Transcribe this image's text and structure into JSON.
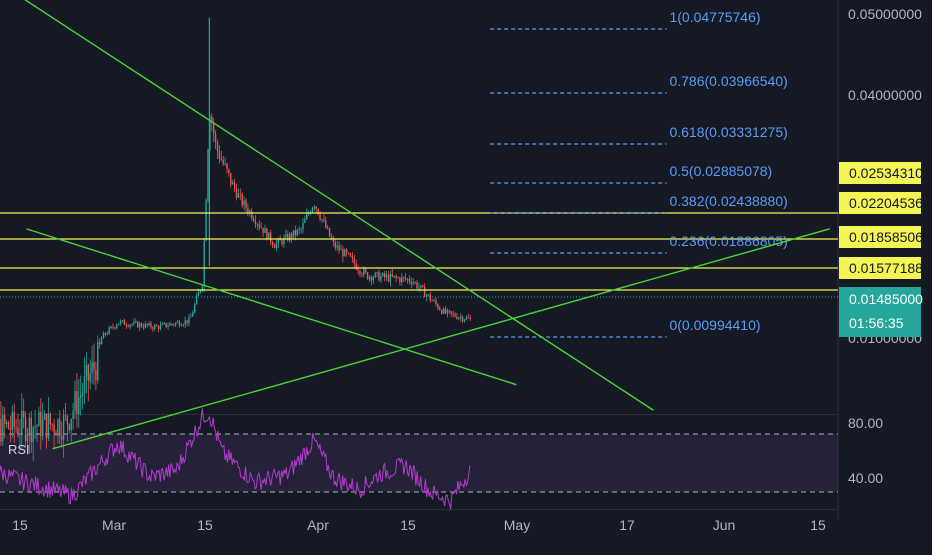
{
  "chart_data": {
    "type": "candlestick",
    "title": "",
    "x_tick_labels": [
      "15",
      "Mar",
      "15",
      "Apr",
      "15",
      "May",
      "17",
      "Jun",
      "15"
    ],
    "y_tick_labels": [
      "0.05000000",
      "0.04000000",
      "0.01000000"
    ],
    "ylim": [
      0.008,
      0.051
    ],
    "price_series": [
      {
        "date": "2020-02-08",
        "close": 0.0085
      },
      {
        "date": "2020-02-22",
        "close": 0.0086
      },
      {
        "date": "2020-02-27",
        "close": 0.0096
      },
      {
        "date": "2020-03-01",
        "close": 0.0115
      },
      {
        "date": "2020-03-07",
        "close": 0.011
      },
      {
        "date": "2020-03-12",
        "close": 0.0117
      },
      {
        "date": "2020-03-14",
        "close": 0.016
      },
      {
        "date": "2020-03-15",
        "close": 0.038
      },
      {
        "date": "2020-03-16",
        "close": 0.033
      },
      {
        "date": "2020-03-20",
        "close": 0.026
      },
      {
        "date": "2020-03-25",
        "close": 0.02
      },
      {
        "date": "2020-03-29",
        "close": 0.022
      },
      {
        "date": "2020-03-31",
        "close": 0.026
      },
      {
        "date": "2020-04-03",
        "close": 0.02
      },
      {
        "date": "2020-04-08",
        "close": 0.0165
      },
      {
        "date": "2020-04-15",
        "close": 0.016
      },
      {
        "date": "2020-04-20",
        "close": 0.0125
      },
      {
        "date": "2020-04-24",
        "close": 0.0118
      }
    ],
    "price_high": {
      "date": "2020-03-15",
      "value": 0.0478
    },
    "fibonacci_levels": [
      {
        "label": "1(0.04775746)",
        "value": 0.04775746
      },
      {
        "label": "0.786(0.03966540)",
        "value": 0.0396654
      },
      {
        "label": "0.618(0.03331275)",
        "value": 0.03331275
      },
      {
        "label": "0.5(0.02885078)",
        "value": 0.02885078
      },
      {
        "label": "0.382(0.02438880)",
        "value": 0.0243888
      },
      {
        "label": "0.236(0.01886805)",
        "value": 0.01886805
      },
      {
        "label": "0(0.00994410)",
        "value": 0.0099441
      }
    ],
    "horizontal_levels": [
      {
        "label": "0.02534310",
        "value": 0.0253431
      },
      {
        "label": "0.02204536",
        "value": 0.02204536
      },
      {
        "label": "0.01858506",
        "value": 0.01858506
      },
      {
        "label": "0.01577188",
        "value": 0.01577188
      }
    ],
    "current_price": {
      "label": "0.01485000",
      "countdown": "01:56:35"
    },
    "trendlines": [
      {
        "from": {
          "date": "2020-02-13",
          "value": 0.051
        },
        "to": {
          "date": "2020-05-22",
          "value": 0.0088
        }
      },
      {
        "from": {
          "date": "2020-02-16",
          "value": 0.0222
        },
        "to": {
          "date": "2020-05-01",
          "value": 0.0092
        }
      },
      {
        "from": {
          "date": "2020-02-20",
          "value": 0.0082
        },
        "to": {
          "date": "2020-06-18",
          "value": 0.0222
        }
      }
    ],
    "rsi": {
      "label": "RSI",
      "y_tick_labels": [
        "80.00",
        "40.00"
      ],
      "ylim": [
        30,
        90
      ],
      "overbought": 70,
      "oversold": 30,
      "values": [
        {
          "date": "2020-02-08",
          "value": 60
        },
        {
          "date": "2020-02-15",
          "value": 48
        },
        {
          "date": "2020-02-23",
          "value": 38
        },
        {
          "date": "2020-03-01",
          "value": 72
        },
        {
          "date": "2020-03-06",
          "value": 50
        },
        {
          "date": "2020-03-10",
          "value": 55
        },
        {
          "date": "2020-03-14",
          "value": 90
        },
        {
          "date": "2020-03-15",
          "value": 92
        },
        {
          "date": "2020-03-17",
          "value": 66
        },
        {
          "date": "2020-03-22",
          "value": 47
        },
        {
          "date": "2020-03-27",
          "value": 52
        },
        {
          "date": "2020-03-31",
          "value": 74
        },
        {
          "date": "2020-04-03",
          "value": 50
        },
        {
          "date": "2020-04-07",
          "value": 42
        },
        {
          "date": "2020-04-10",
          "value": 52
        },
        {
          "date": "2020-04-14",
          "value": 58
        },
        {
          "date": "2020-04-18",
          "value": 40
        },
        {
          "date": "2020-04-21",
          "value": 35
        },
        {
          "date": "2020-04-24",
          "value": 55
        }
      ]
    },
    "colors": {
      "background": "#151924",
      "fib": "#5b9cf6",
      "level": "#f4f454",
      "trendline": "#4cd137",
      "rsi": "#b13ccc",
      "current_price": "#26a69a",
      "candle_up": "#26a69a",
      "candle_down": "#ef5350"
    }
  }
}
